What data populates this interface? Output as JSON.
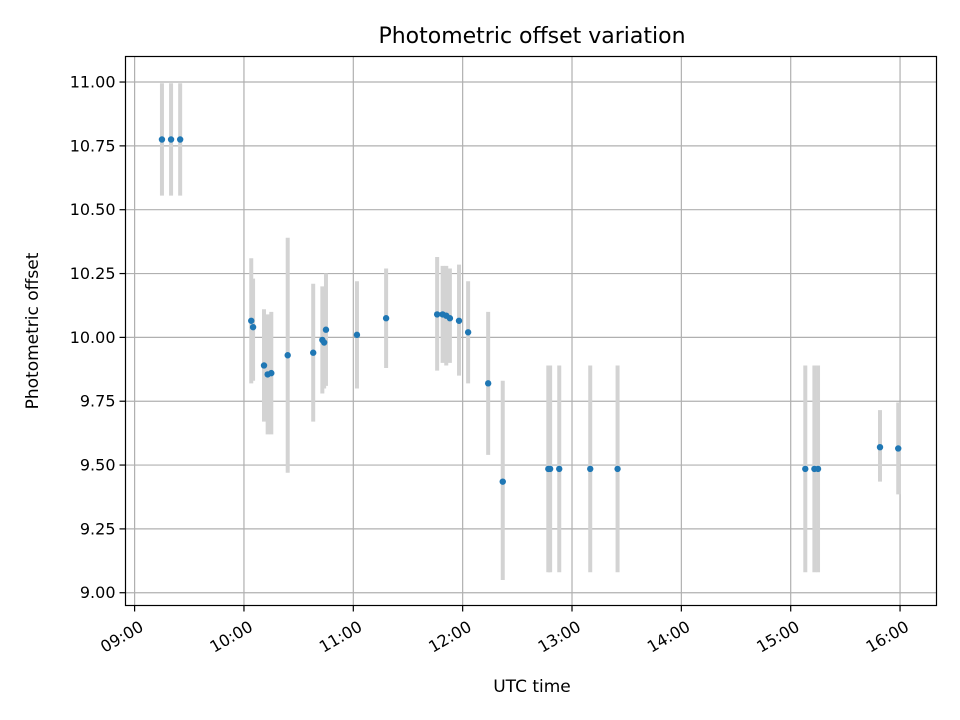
{
  "chart_data": {
    "type": "scatter",
    "title": "Photometric offset variation",
    "xlabel": "UTC time",
    "ylabel": "Photometric offset",
    "xlim": [
      "08:55",
      "16:20"
    ],
    "ylim": [
      8.95,
      11.1
    ],
    "x_ticks": [
      "09:00",
      "10:00",
      "11:00",
      "12:00",
      "13:00",
      "14:00",
      "15:00",
      "16:00"
    ],
    "y_ticks": [
      "9.00",
      "9.25",
      "9.50",
      "9.75",
      "10.00",
      "10.25",
      "10.50",
      "10.75",
      "11.00"
    ],
    "grid": true,
    "colors": {
      "point": "#1f77b4",
      "errorbar": "#d3d3d3",
      "grid": "#b0b0b0"
    },
    "points": [
      {
        "x": "09:15",
        "y": 10.775,
        "lo": 10.555,
        "hi": 10.995
      },
      {
        "x": "09:20",
        "y": 10.775,
        "lo": 10.555,
        "hi": 10.995
      },
      {
        "x": "09:25",
        "y": 10.775,
        "lo": 10.555,
        "hi": 10.995
      },
      {
        "x": "10:04",
        "y": 10.065,
        "lo": 9.82,
        "hi": 10.31
      },
      {
        "x": "10:05",
        "y": 10.04,
        "lo": 9.83,
        "hi": 10.23
      },
      {
        "x": "10:11",
        "y": 9.89,
        "lo": 9.67,
        "hi": 10.11
      },
      {
        "x": "10:13",
        "y": 9.855,
        "lo": 9.62,
        "hi": 10.09
      },
      {
        "x": "10:15",
        "y": 9.86,
        "lo": 9.62,
        "hi": 10.1
      },
      {
        "x": "10:24",
        "y": 9.93,
        "lo": 9.47,
        "hi": 10.39
      },
      {
        "x": "10:38",
        "y": 9.94,
        "lo": 9.67,
        "hi": 10.21
      },
      {
        "x": "10:43",
        "y": 9.99,
        "lo": 9.78,
        "hi": 10.2
      },
      {
        "x": "10:44",
        "y": 9.98,
        "lo": 9.8,
        "hi": 10.16
      },
      {
        "x": "10:45",
        "y": 10.03,
        "lo": 9.81,
        "hi": 10.25
      },
      {
        "x": "11:02",
        "y": 10.01,
        "lo": 9.8,
        "hi": 10.22
      },
      {
        "x": "11:18",
        "y": 10.075,
        "lo": 9.88,
        "hi": 10.27
      },
      {
        "x": "11:46",
        "y": 10.09,
        "lo": 9.87,
        "hi": 10.315
      },
      {
        "x": "11:49",
        "y": 10.09,
        "lo": 9.9,
        "hi": 10.28
      },
      {
        "x": "11:51",
        "y": 10.085,
        "lo": 9.89,
        "hi": 10.28
      },
      {
        "x": "11:53",
        "y": 10.075,
        "lo": 9.9,
        "hi": 10.27
      },
      {
        "x": "11:58",
        "y": 10.065,
        "lo": 9.85,
        "hi": 10.285
      },
      {
        "x": "12:03",
        "y": 10.02,
        "lo": 9.82,
        "hi": 10.22
      },
      {
        "x": "12:14",
        "y": 9.82,
        "lo": 9.54,
        "hi": 10.1
      },
      {
        "x": "12:22",
        "y": 9.435,
        "lo": 9.05,
        "hi": 9.83
      },
      {
        "x": "12:47",
        "y": 9.485,
        "lo": 9.08,
        "hi": 9.89
      },
      {
        "x": "12:48",
        "y": 9.485,
        "lo": 9.08,
        "hi": 9.89
      },
      {
        "x": "12:53",
        "y": 9.485,
        "lo": 9.08,
        "hi": 9.89
      },
      {
        "x": "13:10",
        "y": 9.485,
        "lo": 9.08,
        "hi": 9.89
      },
      {
        "x": "13:25",
        "y": 9.485,
        "lo": 9.08,
        "hi": 9.89
      },
      {
        "x": "15:08",
        "y": 9.485,
        "lo": 9.08,
        "hi": 9.89
      },
      {
        "x": "15:13",
        "y": 9.485,
        "lo": 9.08,
        "hi": 9.89
      },
      {
        "x": "15:15",
        "y": 9.485,
        "lo": 9.08,
        "hi": 9.89
      },
      {
        "x": "15:49",
        "y": 9.57,
        "lo": 9.435,
        "hi": 9.715
      },
      {
        "x": "15:59",
        "y": 9.565,
        "lo": 9.385,
        "hi": 9.745
      }
    ]
  }
}
